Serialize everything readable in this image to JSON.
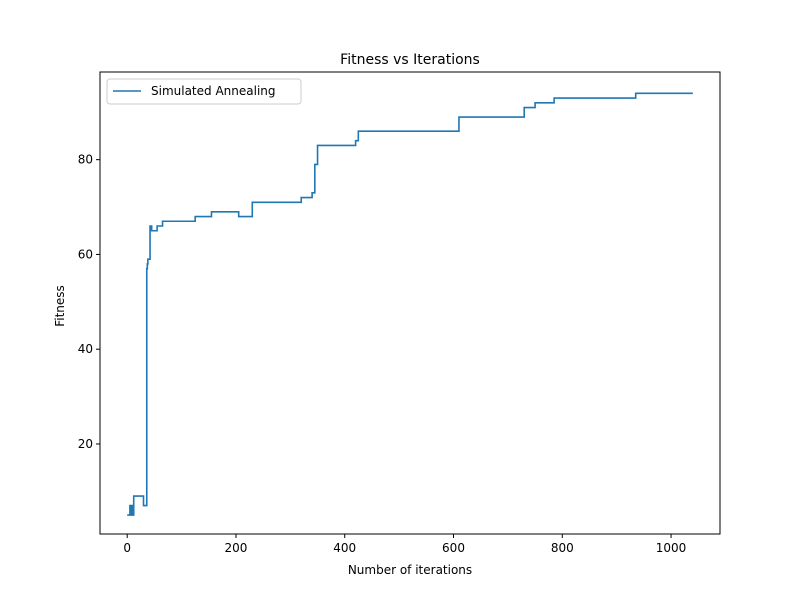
{
  "chart_data": {
    "type": "line",
    "title": "Fitness vs Iterations",
    "xlabel": "Number of iterations",
    "ylabel": "Fitness",
    "xlim": [
      -50,
      1090
    ],
    "ylim": [
      1.0,
      98.5
    ],
    "xticks": [
      0,
      200,
      400,
      600,
      800,
      1000
    ],
    "yticks": [
      20,
      40,
      60,
      80
    ],
    "grid": false,
    "legend": {
      "position": "top-left",
      "entries": [
        "Simulated Annealing"
      ]
    },
    "series": [
      {
        "name": "Simulated Annealing",
        "color": "#1f77b4",
        "step": "post",
        "x": [
          0,
          5,
          6,
          7,
          8,
          9,
          10,
          12,
          30,
          36,
          37,
          38,
          40,
          42,
          45,
          48,
          55,
          65,
          70,
          120,
          125,
          155,
          160,
          205,
          210,
          230,
          235,
          320,
          325,
          340,
          345,
          350,
          355,
          420,
          425,
          610,
          615,
          730,
          735,
          750,
          755,
          785,
          790,
          935,
          940,
          1040
        ],
        "y": [
          5,
          7,
          5,
          7,
          5,
          7,
          5,
          9,
          7,
          57,
          58,
          59,
          59,
          66,
          65,
          65,
          66,
          67,
          67,
          67,
          68,
          69,
          69,
          68,
          68,
          71,
          71,
          72,
          72,
          73,
          79,
          83,
          83,
          84,
          86,
          89,
          89,
          91,
          91,
          92,
          92,
          93,
          93,
          94,
          94,
          94
        ]
      }
    ]
  }
}
